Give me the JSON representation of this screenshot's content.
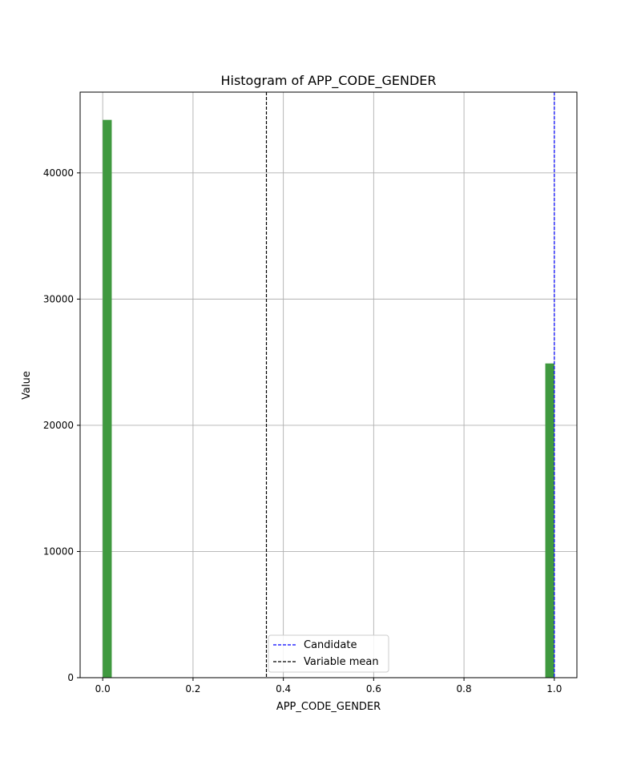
{
  "chart_data": {
    "type": "bar",
    "title": "Histogram of APP_CODE_GENDER",
    "xlabel": "APP_CODE_GENDER",
    "ylabel": "Value",
    "xlim": [
      -0.05,
      1.05
    ],
    "ylim": [
      0,
      46400
    ],
    "xticks": [
      0.0,
      0.2,
      0.4,
      0.6,
      0.8,
      1.0
    ],
    "xtick_labels": [
      "0.0",
      "0.2",
      "0.4",
      "0.6",
      "0.8",
      "1.0"
    ],
    "yticks": [
      0,
      10000,
      20000,
      30000,
      40000
    ],
    "ytick_labels": [
      "0",
      "10000",
      "20000",
      "30000",
      "40000"
    ],
    "grid": true,
    "bar_color": "#3f993f",
    "bars": [
      {
        "x_start": 0.0,
        "x_end": 0.02,
        "value": 44200
      },
      {
        "x_start": 0.98,
        "x_end": 1.0,
        "value": 24900
      }
    ],
    "reference_lines": [
      {
        "label": "Candidate",
        "x": 1.0,
        "color": "#0000ff",
        "style": "dashed"
      },
      {
        "label": "Variable mean",
        "x": 0.3625,
        "color": "#000000",
        "style": "dashed"
      }
    ],
    "legend_position": "lower-center"
  }
}
